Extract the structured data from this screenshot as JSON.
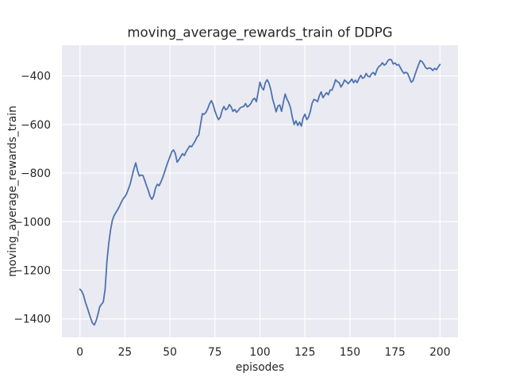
{
  "figure": {
    "kind": "matplotlib-seaborn-figure",
    "background_color": "#ffffff"
  },
  "chart_data": {
    "type": "line",
    "title": "moving_average_rewards_train of DDPG",
    "xlabel": "episodes",
    "ylabel": "moving_average_rewards_train",
    "series": [
      {
        "name": "moving_average_rewards_train",
        "x_start": 0,
        "x_step": 1,
        "y": [
          -1278,
          -1286,
          -1303,
          -1330,
          -1352,
          -1375,
          -1398,
          -1418,
          -1425,
          -1408,
          -1382,
          -1350,
          -1340,
          -1330,
          -1278,
          -1164,
          -1090,
          -1035,
          -995,
          -975,
          -962,
          -950,
          -936,
          -920,
          -906,
          -897,
          -884,
          -864,
          -843,
          -812,
          -782,
          -758,
          -790,
          -812,
          -808,
          -810,
          -830,
          -852,
          -872,
          -896,
          -908,
          -893,
          -862,
          -846,
          -852,
          -836,
          -818,
          -796,
          -773,
          -752,
          -733,
          -712,
          -705,
          -720,
          -755,
          -745,
          -732,
          -720,
          -728,
          -712,
          -700,
          -688,
          -692,
          -680,
          -668,
          -652,
          -644,
          -600,
          -556,
          -558,
          -550,
          -535,
          -515,
          -502,
          -518,
          -545,
          -565,
          -580,
          -570,
          -542,
          -526,
          -540,
          -534,
          -518,
          -528,
          -546,
          -538,
          -550,
          -542,
          -532,
          -528,
          -526,
          -514,
          -528,
          -522,
          -513,
          -498,
          -492,
          -506,
          -468,
          -426,
          -448,
          -458,
          -428,
          -416,
          -430,
          -456,
          -494,
          -520,
          -548,
          -524,
          -520,
          -546,
          -508,
          -475,
          -496,
          -510,
          -532,
          -572,
          -600,
          -585,
          -604,
          -590,
          -607,
          -572,
          -558,
          -580,
          -570,
          -546,
          -512,
          -497,
          -500,
          -506,
          -482,
          -466,
          -490,
          -479,
          -469,
          -478,
          -458,
          -459,
          -440,
          -416,
          -424,
          -428,
          -446,
          -434,
          -417,
          -424,
          -432,
          -424,
          -413,
          -428,
          -418,
          -428,
          -411,
          -398,
          -410,
          -406,
          -390,
          -402,
          -404,
          -391,
          -386,
          -397,
          -374,
          -362,
          -357,
          -346,
          -356,
          -351,
          -338,
          -332,
          -334,
          -351,
          -347,
          -356,
          -353,
          -366,
          -380,
          -390,
          -385,
          -390,
          -407,
          -426,
          -420,
          -398,
          -376,
          -356,
          -337,
          -341,
          -352,
          -366,
          -371,
          -367,
          -370,
          -378,
          -369,
          -375,
          -364,
          -353
        ]
      }
    ],
    "xticks": [
      0,
      25,
      50,
      75,
      100,
      125,
      150,
      175,
      200
    ],
    "xtick_labels": [
      "0",
      "25",
      "50",
      "75",
      "100",
      "125",
      "150",
      "175",
      "200"
    ],
    "yticks": [
      -400,
      -600,
      -800,
      -1000,
      -1200,
      -1400
    ],
    "ytick_labels": [
      "−400",
      "−600",
      "−800",
      "−1000",
      "−1200",
      "−1400"
    ],
    "xlim": [
      -10,
      210
    ],
    "ylim": [
      -1476,
      -274
    ],
    "grid": true,
    "legend": "none",
    "style": {
      "line_color": "#4c72b0",
      "line_width": 1.8,
      "axes_background": "#eaeaf2",
      "grid_color": "#ffffff",
      "text_color": "#262626",
      "figure_background": "#ffffff"
    }
  }
}
